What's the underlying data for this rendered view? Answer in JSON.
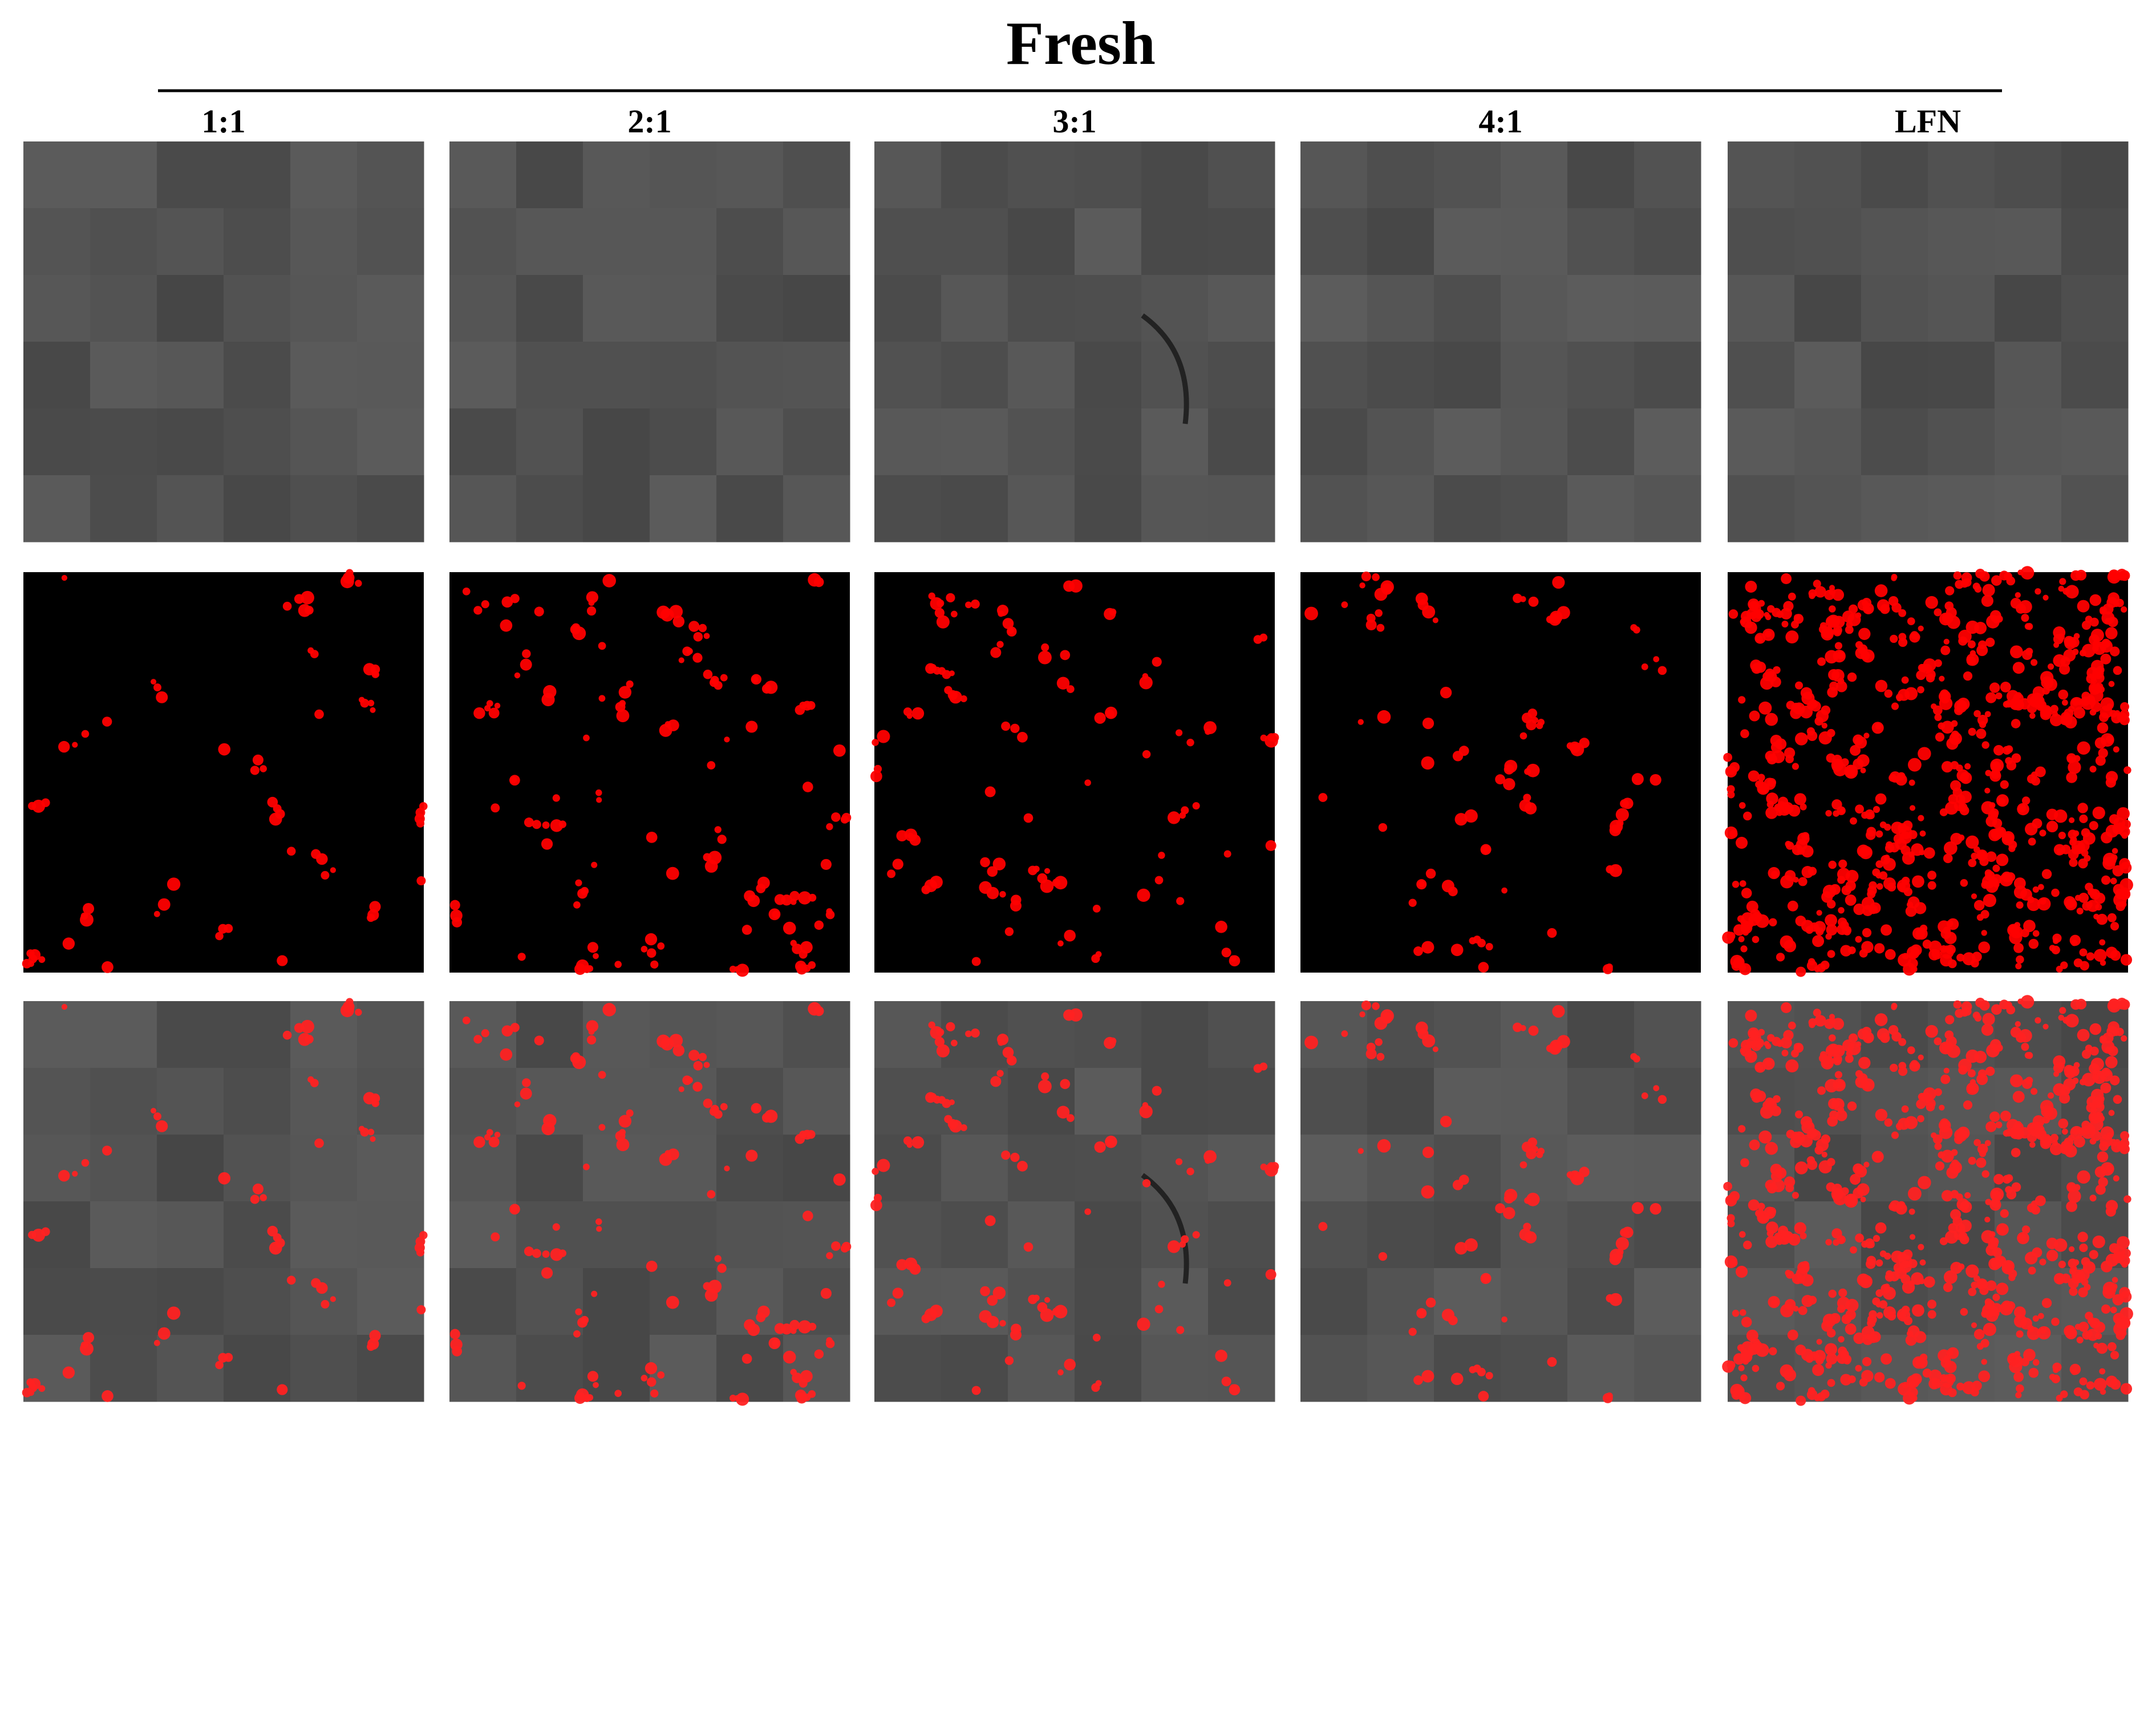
{
  "title": "Fresh",
  "columns": [
    "1:1",
    "2:1",
    "3:1",
    "4:1",
    "LFN"
  ]
}
